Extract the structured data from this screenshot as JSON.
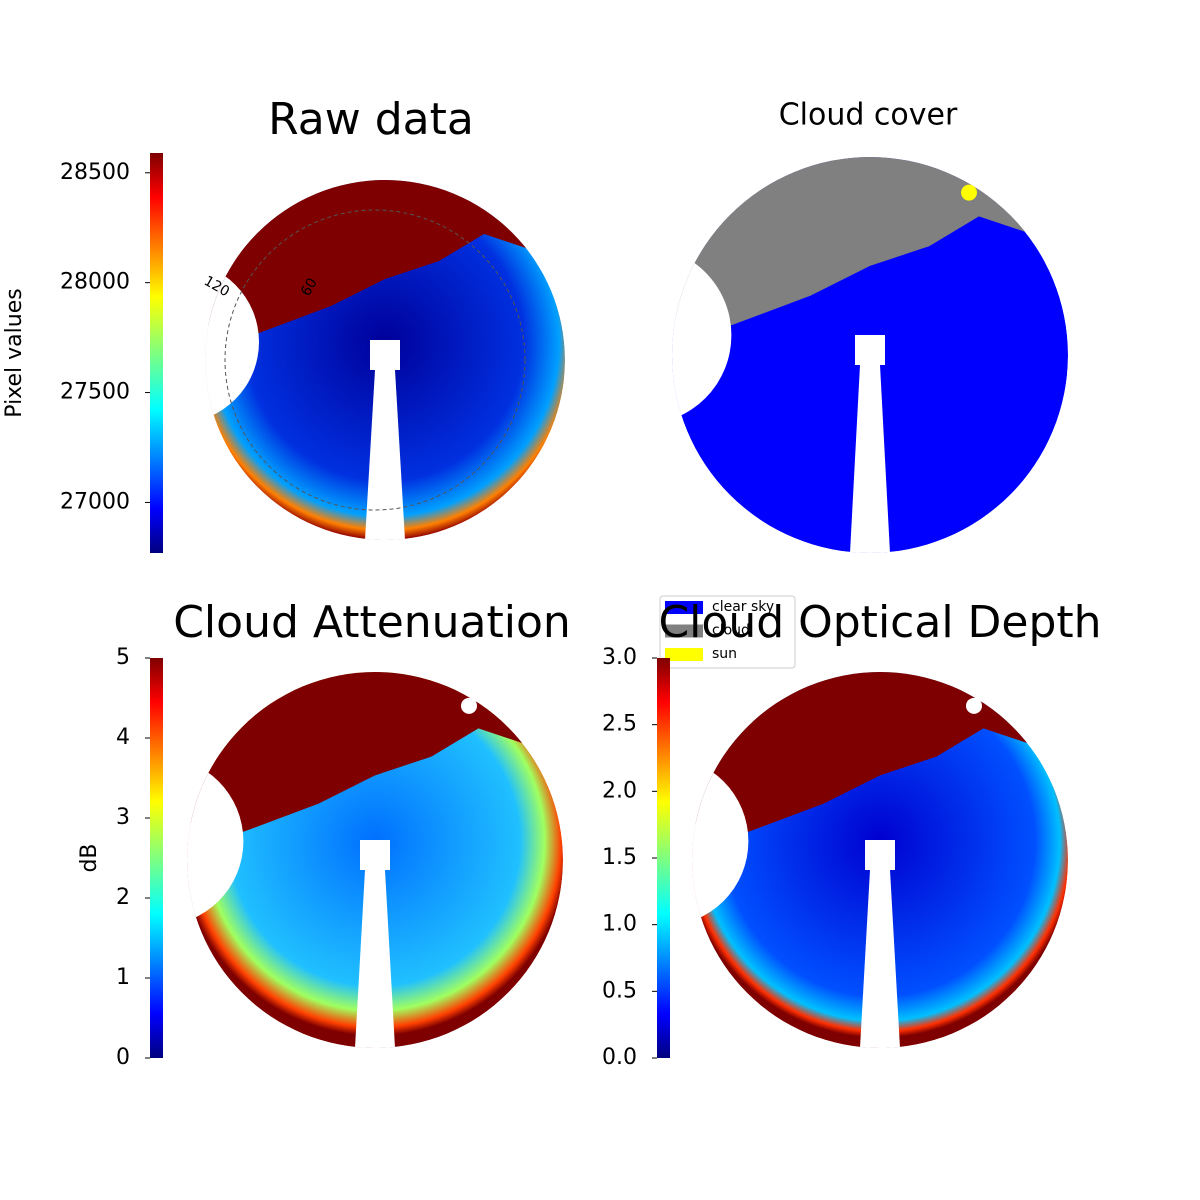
{
  "chart_data": [
    {
      "type": "heatmap",
      "title": "Raw data",
      "colorbar_label": "Pixel values",
      "clim": [
        26770,
        28590
      ],
      "cticks": [
        27000,
        27500,
        28000,
        28500
      ],
      "annotations": [
        "120",
        "60"
      ]
    },
    {
      "type": "classmap",
      "title": "Cloud cover",
      "legend": [
        {
          "name": "clear sky",
          "color": "#0000ff"
        },
        {
          "name": "cloud",
          "color": "#808080"
        },
        {
          "name": "sun",
          "color": "#ffff00"
        }
      ]
    },
    {
      "type": "heatmap",
      "title": "Cloud Attenuation",
      "colorbar_label": "dB",
      "clim": [
        0,
        5
      ],
      "cticks": [
        0,
        1,
        2,
        3,
        4,
        5
      ]
    },
    {
      "type": "heatmap",
      "title": "Cloud Optical Depth",
      "clim": [
        0,
        3
      ],
      "cticks": [
        {
          "value": 0,
          "label": "0.0"
        },
        0.5,
        {
          "value": 1,
          "label": "1.0"
        },
        1.5,
        {
          "value": 2,
          "label": "2.0"
        },
        2.5,
        {
          "value": 3,
          "label": "3.0"
        }
      ]
    }
  ]
}
